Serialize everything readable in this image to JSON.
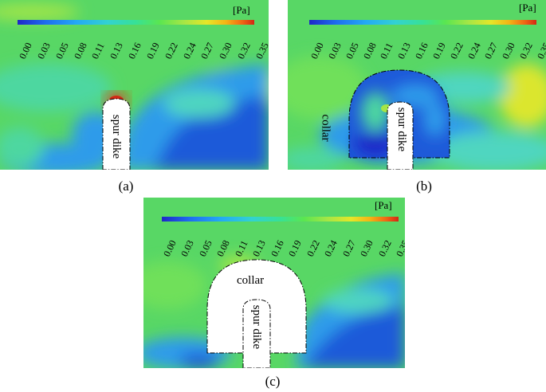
{
  "colorbar": {
    "unit": "[Pa]",
    "ticks": [
      "0.00",
      "0.03",
      "0.05",
      "0.08",
      "0.11",
      "0.13",
      "0.16",
      "0.19",
      "0.22",
      "0.24",
      "0.27",
      "0.30",
      "0.32",
      "0.35"
    ],
    "colors": [
      "#1e27c8",
      "#1e6ef0",
      "#23aaf5",
      "#32d2d2",
      "#37e196",
      "#5ae650",
      "#a5e646",
      "#e6e628",
      "#f5b414",
      "#f06414",
      "#d22814"
    ]
  },
  "panels": {
    "a": {
      "caption": "(a)",
      "spur_label": "spur dike"
    },
    "b": {
      "caption": "(b)",
      "spur_label": "spur dike",
      "collar_label": "collar"
    },
    "c": {
      "caption": "(c)",
      "spur_label": "spur dike",
      "collar_label": "collar"
    }
  }
}
